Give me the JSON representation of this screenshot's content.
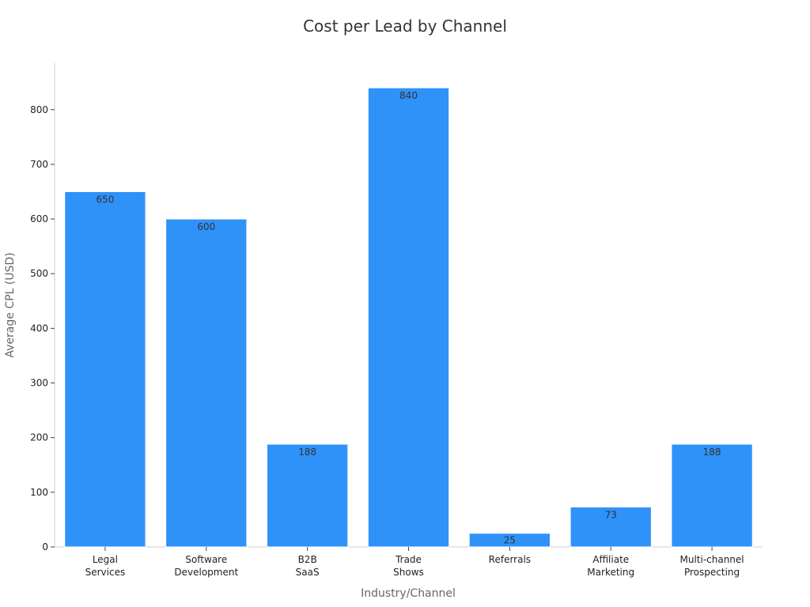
{
  "chart_data": {
    "type": "bar",
    "title": "Cost per Lead by Channel",
    "xlabel": "Industry/Channel",
    "ylabel": "Average CPL (USD)",
    "categories": [
      [
        "Legal",
        "Services"
      ],
      [
        "Software",
        "Development"
      ],
      [
        "B2B",
        "SaaS"
      ],
      [
        "Trade",
        "Shows"
      ],
      [
        "Referrals"
      ],
      [
        "Affiliate",
        "Marketing"
      ],
      [
        "Multi-channel",
        "Prospecting"
      ]
    ],
    "values": [
      650,
      600,
      188,
      840,
      25,
      73,
      188
    ],
    "data_labels": [
      "650",
      "600",
      "188",
      "840",
      "25",
      "73",
      "188"
    ],
    "ylim": [
      0,
      885
    ],
    "yticks": [
      0,
      100,
      200,
      300,
      400,
      500,
      600,
      700,
      800
    ],
    "grid": false,
    "legend": "none",
    "colors": {
      "bar": "#2f92f9",
      "bar_edge": "#ffffff",
      "axis": "#cccccc"
    }
  }
}
